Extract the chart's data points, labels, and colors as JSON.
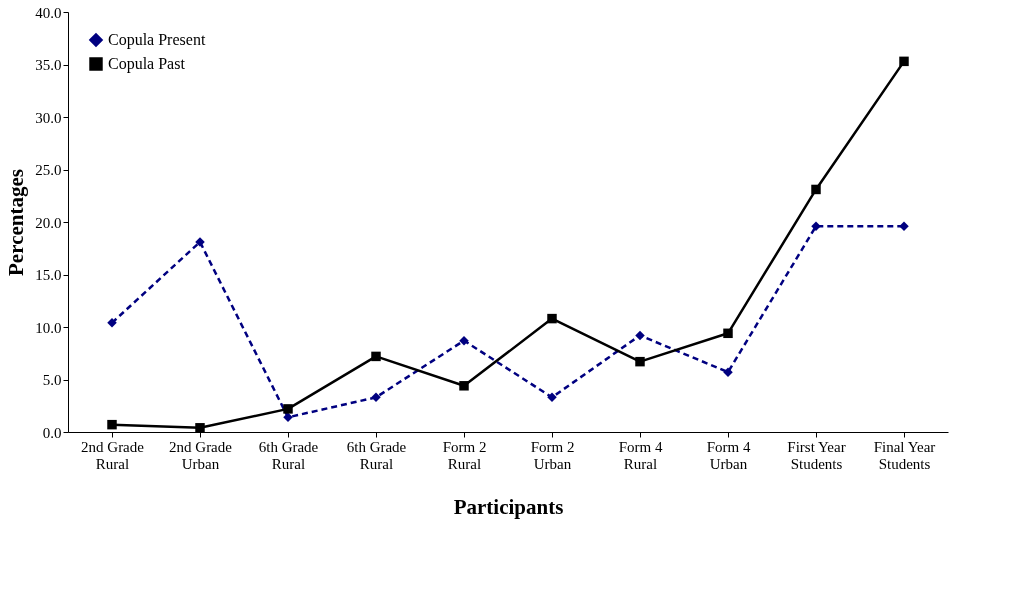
{
  "chart_data": {
    "type": "line",
    "xlabel": "Participants",
    "ylabel": "Percentages",
    "categories": [
      "2nd Grade Rural",
      "2nd Grade Urban",
      "6th Grade Rural",
      "6th Grade Rural",
      "Form 2 Rural",
      "Form 2 Urban",
      "Form 4 Rural",
      "Form 4 Urban",
      "First Year Students",
      "Final Year Students"
    ],
    "series": [
      {
        "name": "Copula Present",
        "color": "#000080",
        "marker": "diamond",
        "line_style": "dashed",
        "values": [
          10.4,
          18.1,
          1.4,
          3.3,
          8.7,
          3.3,
          9.2,
          5.7,
          19.6,
          19.6
        ]
      },
      {
        "name": "Copula Past",
        "color": "#000000",
        "marker": "square",
        "line_style": "solid",
        "values": [
          0.7,
          0.4,
          2.2,
          7.2,
          4.4,
          10.8,
          6.7,
          9.4,
          23.1,
          35.3
        ]
      }
    ],
    "ylim": [
      0,
      40
    ],
    "yticks": [
      {
        "value": 0,
        "label": "0.0"
      },
      {
        "value": 5,
        "label": "5.0"
      },
      {
        "value": 10,
        "label": "10.0"
      },
      {
        "value": 15,
        "label": "15.0"
      },
      {
        "value": 20,
        "label": "20.0"
      },
      {
        "value": 25,
        "label": "25.0"
      },
      {
        "value": 30,
        "label": "30.0"
      },
      {
        "value": 35,
        "label": "35.0"
      },
      {
        "value": 40,
        "label": "40.0"
      }
    ],
    "grid": false,
    "legend": "top left"
  }
}
